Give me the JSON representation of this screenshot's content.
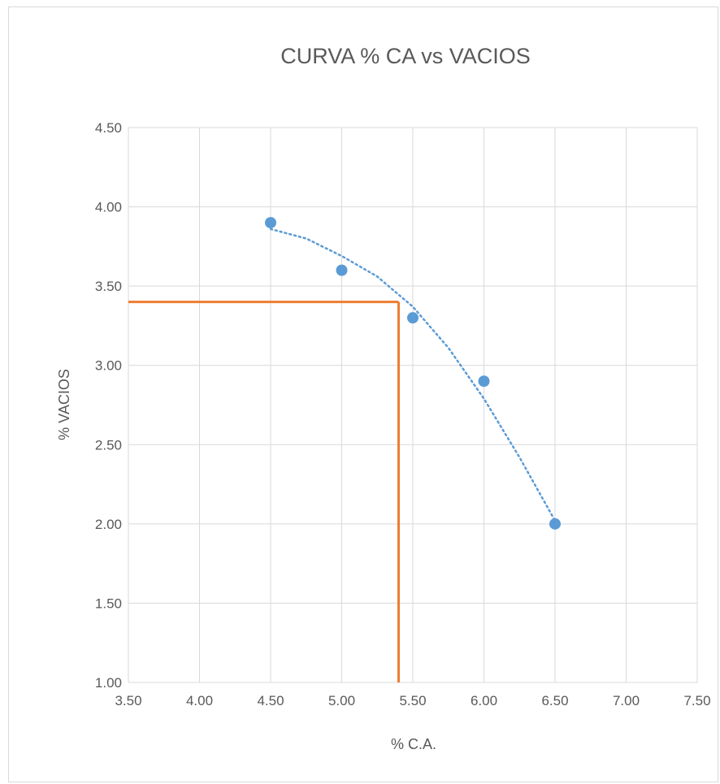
{
  "chart_data": {
    "type": "scatter",
    "title": "CURVA  % CA vs VACIOS",
    "xlabel": "%  C.A.",
    "ylabel": "% VACIOS",
    "xlim": [
      3.5,
      7.5
    ],
    "ylim": [
      1.0,
      4.5
    ],
    "x_ticks": [
      "3.50",
      "4.00",
      "4.50",
      "5.00",
      "5.50",
      "6.00",
      "6.50",
      "7.00",
      "7.50"
    ],
    "y_ticks": [
      "1.00",
      "1.50",
      "2.00",
      "2.50",
      "3.00",
      "3.50",
      "4.00",
      "4.50"
    ],
    "grid": true,
    "legend": "none",
    "series": [
      {
        "type": "scatter",
        "color": "#5b9bd5",
        "points": [
          {
            "x": 4.5,
            "y": 3.9
          },
          {
            "x": 5.0,
            "y": 3.6
          },
          {
            "x": 5.5,
            "y": 3.3
          },
          {
            "x": 6.0,
            "y": 2.9
          },
          {
            "x": 6.5,
            "y": 2.0
          }
        ]
      },
      {
        "type": "trendline-dotted",
        "color": "#5b9bd5",
        "points": [
          {
            "x": 4.5,
            "y": 3.86
          },
          {
            "x": 4.75,
            "y": 3.8
          },
          {
            "x": 5.0,
            "y": 3.69
          },
          {
            "x": 5.25,
            "y": 3.56
          },
          {
            "x": 5.5,
            "y": 3.37
          },
          {
            "x": 5.75,
            "y": 3.11
          },
          {
            "x": 6.0,
            "y": 2.79
          },
          {
            "x": 6.25,
            "y": 2.42
          },
          {
            "x": 6.5,
            "y": 2.02
          }
        ]
      }
    ],
    "reference_lines": {
      "color": "#ed7d31",
      "horizontal_y": 3.4,
      "vertical_x": 5.4
    }
  }
}
